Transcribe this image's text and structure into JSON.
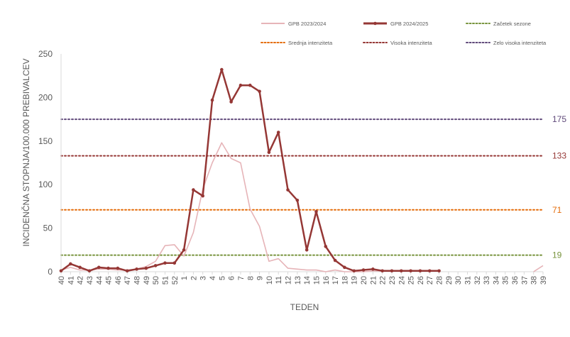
{
  "chart_data": {
    "type": "line",
    "xlabel": "TEDEN",
    "ylabel": "INCIDENČNA  STOPNJA/100.000  PREBIVALCEV",
    "ylim": [
      0,
      250
    ],
    "yticks": [
      "0",
      "50",
      "100",
      "150",
      "200",
      "250"
    ],
    "grid": false,
    "legend_position": "top",
    "categories": [
      "40",
      "41",
      "42",
      "43",
      "44",
      "45",
      "46",
      "47",
      "48",
      "49",
      "50",
      "51",
      "52",
      "1",
      "2",
      "3",
      "4",
      "5",
      "6",
      "7",
      "8",
      "9",
      "10",
      "11",
      "12",
      "13",
      "14",
      "15",
      "16",
      "17",
      "18",
      "19",
      "20",
      "21",
      "22",
      "23",
      "24",
      "25",
      "26",
      "27",
      "28",
      "29",
      "30",
      "31",
      "32",
      "33",
      "34",
      "35",
      "36",
      "37",
      "38",
      "39"
    ],
    "series": [
      {
        "name": "GPB 2023/2024",
        "color": "#e6b4b8",
        "style": "thin",
        "values": [
          2,
          5,
          2,
          2,
          3,
          3,
          2,
          2,
          3,
          6,
          12,
          30,
          31,
          18,
          45,
          95,
          125,
          148,
          130,
          125,
          72,
          52,
          12,
          15,
          4,
          3,
          2,
          2,
          0,
          2,
          0,
          0,
          0,
          1,
          1,
          null,
          null,
          null,
          null,
          null,
          null,
          null,
          null,
          null,
          null,
          null,
          null,
          null,
          null,
          null,
          0,
          7
        ]
      },
      {
        "name": "GPB 2024/2025",
        "color": "#953735",
        "style": "thick-markers",
        "values": [
          1,
          9,
          5,
          1,
          5,
          4,
          4,
          1,
          3,
          4,
          7,
          10,
          10,
          25,
          94,
          87,
          197,
          232,
          195,
          214,
          214,
          207,
          137,
          160,
          94,
          82,
          25,
          69,
          29,
          13,
          5,
          1,
          2,
          3,
          1,
          1,
          1,
          1,
          1,
          1,
          1,
          null,
          null,
          null,
          null,
          null,
          null,
          null,
          null,
          null,
          null,
          null
        ]
      }
    ],
    "thresholds": [
      {
        "name": "Začetek sezone",
        "value": 19,
        "label": "19",
        "color": "#77933c"
      },
      {
        "name": "Srednja intenziteta",
        "value": 71,
        "label": "71",
        "color": "#e46c0a"
      },
      {
        "name": "Visoka intenziteta",
        "value": 133,
        "label": "133",
        "color": "#953735"
      },
      {
        "name": "Zelo visoka intenziteta",
        "value": 175,
        "label": "175",
        "color": "#60497a"
      }
    ]
  }
}
